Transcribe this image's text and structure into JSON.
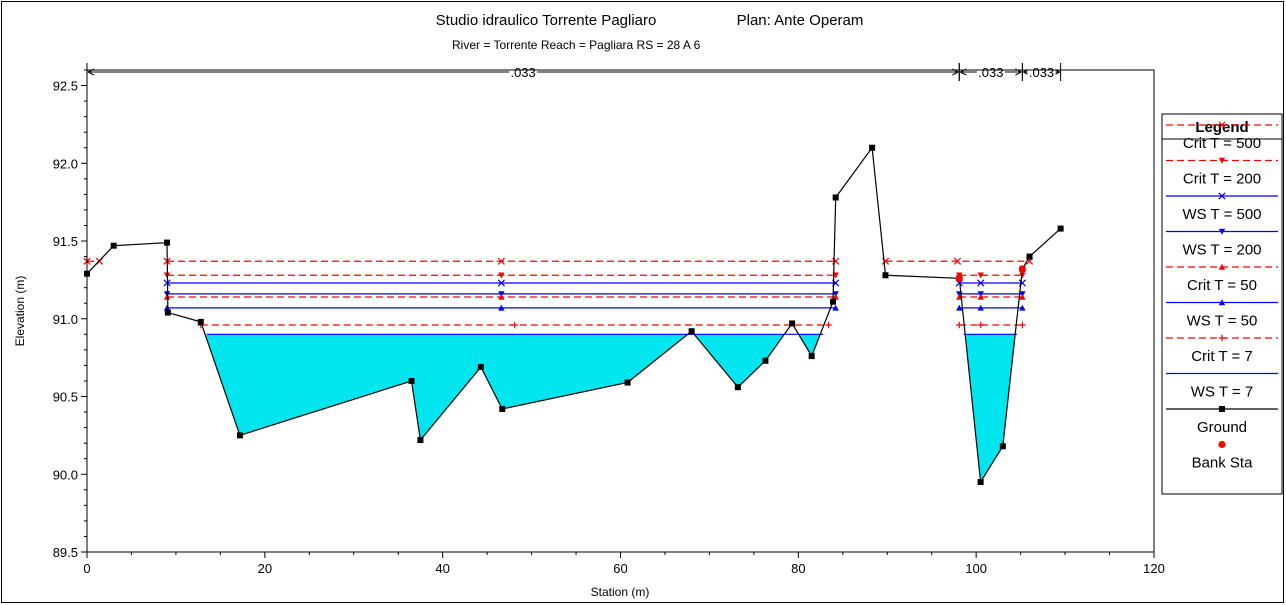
{
  "chart_data": {
    "type": "line",
    "title": "Studio idraulico Torrente Pagliaro",
    "plan": "Plan: Ante Operam",
    "subtitle": "River = Torrente   Reach = Pagliara       RS = 28    A 6",
    "xlabel": "Station (m)",
    "ylabel": "Elevation (m)",
    "xlim": [
      0,
      120
    ],
    "ylim": [
      89.5,
      92.6
    ],
    "xticks": [
      "0",
      "20",
      "40",
      "60",
      "80",
      "100",
      "120"
    ],
    "yticks": [
      "89.5",
      "90.0",
      "90.5",
      "91.0",
      "91.5",
      "92.0",
      "92.5"
    ],
    "grid": false,
    "legend_position": "right",
    "legend_title": "Legend",
    "manning_n": [
      {
        "label": ".033",
        "from": 0,
        "to": 98.1
      },
      {
        "label": ".033",
        "from": 98.1,
        "to": 105.2
      },
      {
        "label": ".033",
        "from": 105.2,
        "to": 109.5
      }
    ],
    "ground": {
      "name": "Ground",
      "x": [
        0,
        3,
        9,
        9.1,
        12.8,
        17.2,
        36.5,
        37.5,
        44.3,
        46.7,
        60.8,
        68,
        73.2,
        76.3,
        79.3,
        81.5,
        83.9,
        84.2,
        88.3,
        89.8,
        98.1,
        100.5,
        103,
        105.2,
        106,
        109.5
      ],
      "y": [
        91.29,
        91.47,
        91.49,
        91.04,
        90.98,
        90.25,
        90.6,
        90.22,
        90.69,
        90.42,
        90.59,
        90.92,
        90.56,
        90.73,
        90.97,
        90.76,
        91.11,
        91.78,
        92.1,
        91.28,
        91.26,
        89.95,
        90.18,
        91.32,
        91.4,
        91.58
      ]
    },
    "bank_stations": {
      "name": "Bank Sta",
      "x": [
        98.1,
        105.2
      ],
      "y": [
        91.26,
        91.32
      ]
    },
    "water_surface_fill": {
      "elevation": 90.9,
      "color": "#00e5ee"
    },
    "series": [
      {
        "name": "Crit  T = 500",
        "elevation": 91.37,
        "style": "dashed",
        "color": "#ff0000",
        "marker": "x",
        "segments": [
          [
            0,
            1.4
          ],
          [
            9,
            84.2
          ],
          [
            89.8,
            106
          ]
        ]
      },
      {
        "name": "Crit  T = 200",
        "elevation": 91.28,
        "style": "dashed",
        "color": "#ff0000",
        "marker": "triangle-down",
        "segments": [
          [
            9,
            84.2
          ],
          [
            98.1,
            105.2
          ]
        ]
      },
      {
        "name": "WS  T = 500",
        "elevation": 91.23,
        "style": "solid",
        "color": "#0000ff",
        "marker": "x",
        "segments": [
          [
            9,
            84.2
          ],
          [
            98.1,
            105.2
          ]
        ]
      },
      {
        "name": "WS  T = 200",
        "elevation": 91.16,
        "style": "solid",
        "color": "#0000ff",
        "marker": "triangle-down",
        "segments": [
          [
            9,
            84.2
          ],
          [
            98.1,
            105.2
          ]
        ]
      },
      {
        "name": "Crit  T = 50",
        "elevation": 91.14,
        "style": "dashed",
        "color": "#ff0000",
        "marker": "triangle-up",
        "segments": [
          [
            9,
            84.2
          ],
          [
            98.1,
            105.2
          ]
        ]
      },
      {
        "name": "WS  T = 50",
        "elevation": 91.07,
        "style": "solid",
        "color": "#0000ff",
        "marker": "triangle-up",
        "segments": [
          [
            9,
            84.2
          ],
          [
            98.1,
            105.2
          ]
        ]
      },
      {
        "name": "Crit  T = 7",
        "elevation": 90.96,
        "style": "dashed",
        "color": "#ff0000",
        "marker": "plus",
        "segments": [
          [
            12.8,
            83.4
          ],
          [
            98.1,
            105.2
          ]
        ]
      },
      {
        "name": "WS  T = 7",
        "elevation": 90.9,
        "style": "solid",
        "color": "#0000ff",
        "marker": "none",
        "segments": [
          [
            13.5,
            82.8
          ],
          [
            98.6,
            104.6
          ]
        ]
      }
    ],
    "legend_entries": [
      {
        "name": "Crit  T = 500",
        "style": "dashed",
        "color": "#ff0000",
        "marker": "x"
      },
      {
        "name": "Crit  T = 200",
        "style": "dashed",
        "color": "#ff0000",
        "marker": "triangle-down"
      },
      {
        "name": "WS  T = 500",
        "style": "solid",
        "color": "#0000ff",
        "marker": "x"
      },
      {
        "name": "WS  T = 200",
        "style": "solid",
        "color": "#0000ff",
        "marker": "triangle-down"
      },
      {
        "name": "Crit  T = 50",
        "style": "dashed",
        "color": "#ff0000",
        "marker": "triangle-up"
      },
      {
        "name": "WS  T = 50",
        "style": "solid",
        "color": "#0000ff",
        "marker": "triangle-up"
      },
      {
        "name": "Crit  T = 7",
        "style": "dashed",
        "color": "#ff0000",
        "marker": "plus"
      },
      {
        "name": "WS  T = 7",
        "style": "solid",
        "color": "#0000ff",
        "marker": "none"
      },
      {
        "name": "Ground",
        "style": "solid",
        "color": "#000000",
        "marker": "square"
      },
      {
        "name": "Bank Sta",
        "style": "none",
        "color": "#ff0000",
        "marker": "circle"
      }
    ]
  }
}
